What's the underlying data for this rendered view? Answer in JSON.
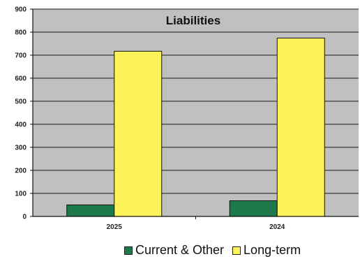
{
  "chart_data": {
    "type": "bar",
    "title": "Liabilities",
    "categories": [
      "2025",
      "2024"
    ],
    "series": [
      {
        "name": "Current & Other",
        "values": [
          50,
          68
        ],
        "color": "#1e7a4a"
      },
      {
        "name": "Long-term",
        "values": [
          717,
          774
        ],
        "color": "#fff35a"
      }
    ],
    "ylim": [
      0,
      900
    ],
    "yticks": [
      0,
      100,
      200,
      300,
      400,
      500,
      600,
      700,
      800,
      900
    ],
    "grid": true,
    "legend_position": "bottom",
    "plot_background": "#c0c0c0"
  }
}
